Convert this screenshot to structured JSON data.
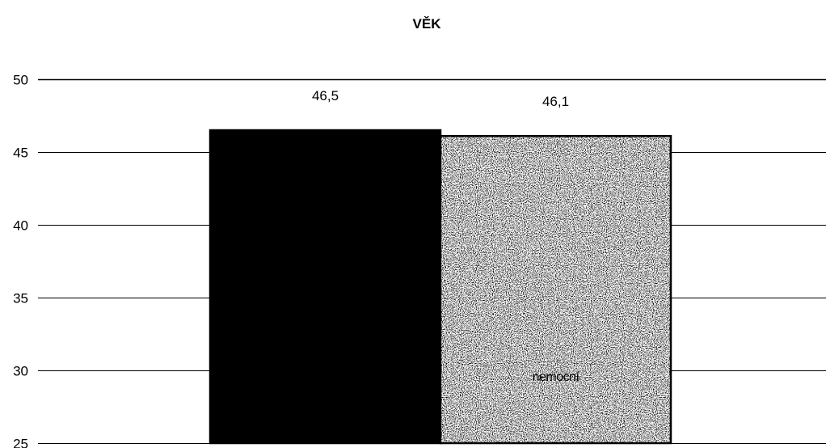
{
  "chart_data": {
    "type": "bar",
    "title": "VĚK",
    "xlabel": "",
    "ylabel": "",
    "ylim": [
      25,
      50
    ],
    "yticks": [
      25,
      30,
      35,
      40,
      45,
      50
    ],
    "ytick_labels": [
      "25",
      "30",
      "35",
      "40",
      "45",
      "50"
    ],
    "grid": true,
    "series": [
      {
        "value": 46.5,
        "value_label": "46,5",
        "fill": "#000000",
        "pattern": "solid",
        "inner_label": ""
      },
      {
        "value": 46.1,
        "value_label": "46,1",
        "fill": "#c8c8c8",
        "pattern": "speckled",
        "inner_label": "nemocní"
      }
    ]
  }
}
